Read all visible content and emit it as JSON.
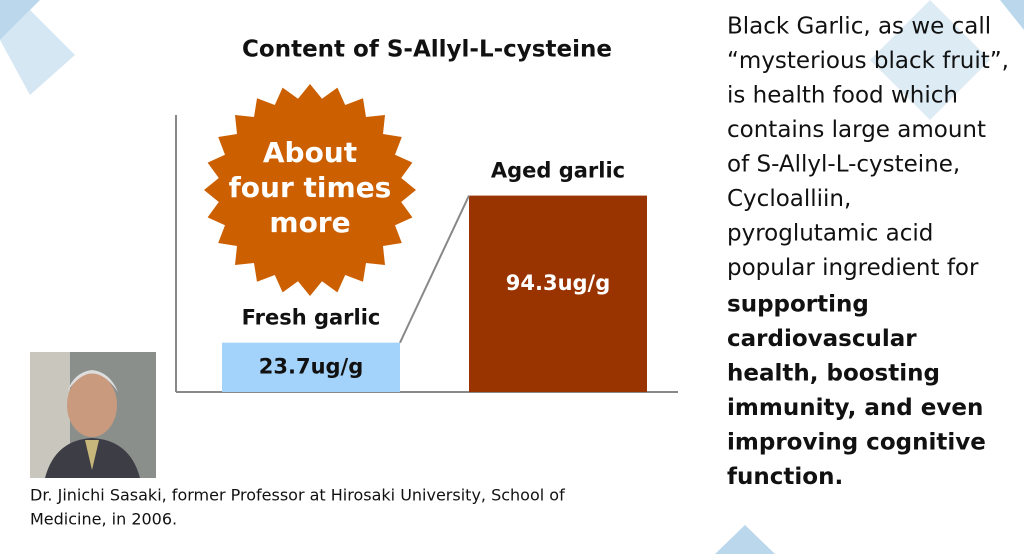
{
  "chart_data": {
    "type": "bar",
    "title": "Content of S-Allyl-L-cysteine",
    "categories": [
      "Fresh garlic",
      "Aged garlic"
    ],
    "values": [
      23.7,
      94.3
    ],
    "value_labels": [
      "23.7ug/g",
      "94.3ug/g"
    ],
    "colors": [
      "#a3d3fb",
      "#993300"
    ],
    "ylim": [
      0,
      133
    ],
    "annotation": [
      "About",
      "four times",
      "more"
    ],
    "annotation_color": "#cc5f00"
  },
  "side_text": {
    "regular": [
      "Black Garlic, as we call",
      "“mysterious black fruit”,",
      "is health food which",
      "contains large amount",
      "of S-Allyl-L-cysteine,",
      "Cycloalliin,",
      "pyroglutamic acid",
      "popular ingredient for"
    ],
    "bold": [
      "supporting",
      "cardiovascular",
      "health, boosting",
      "immunity, and even",
      "improving cognitive",
      "function."
    ]
  },
  "caption": [
    "Dr. Jinichi Sasaki, former Professor at Hirosaki University, School of",
    "Medicine, in 2006."
  ]
}
